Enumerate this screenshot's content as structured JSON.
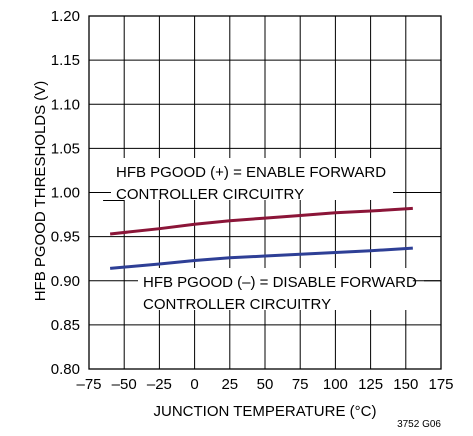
{
  "chart_data": {
    "type": "line",
    "xlabel": "JUNCTION TEMPERATURE (°C)",
    "ylabel": "HFB PGOOD THRESHOLDS (V)",
    "xlim": [
      -75,
      175
    ],
    "ylim": [
      0.8,
      1.2
    ],
    "x_ticks": [
      -75,
      -50,
      -25,
      0,
      25,
      50,
      75,
      100,
      125,
      150,
      175
    ],
    "x_tick_labels": [
      "–75",
      "–50",
      "–25",
      "0",
      "25",
      "50",
      "75",
      "100",
      "125",
      "150",
      "175"
    ],
    "y_ticks": [
      0.8,
      0.85,
      0.9,
      0.95,
      1.0,
      1.05,
      1.1,
      1.15,
      1.2
    ],
    "y_tick_labels": [
      "0.80",
      "0.85",
      "0.90",
      "0.95",
      "1.00",
      "1.05",
      "1.10",
      "1.15",
      "1.20"
    ],
    "grid": true,
    "series": [
      {
        "color": "#8b1538",
        "x": [
          -60,
          -25,
          0,
          25,
          50,
          75,
          100,
          125,
          155
        ],
        "y": [
          0.953,
          0.959,
          0.964,
          0.968,
          0.971,
          0.974,
          0.977,
          0.979,
          0.982
        ]
      },
      {
        "color": "#2e3f96",
        "x": [
          -60,
          -25,
          0,
          25,
          50,
          75,
          100,
          125,
          155
        ],
        "y": [
          0.914,
          0.919,
          0.923,
          0.926,
          0.928,
          0.93,
          0.932,
          0.934,
          0.937
        ]
      }
    ],
    "annotations": [
      {
        "lines": [
          "HFB PGOOD (+) = ENABLE FORWARD",
          "CONTROLLER CIRCUITRY"
        ],
        "leader_from": [
          -50,
          0.991
        ],
        "leader_to": [
          -65,
          0.991
        ]
      },
      {
        "lines": [
          "HFB PGOOD (–) = DISABLE FORWARD",
          "CONTROLLER CIRCUITRY"
        ],
        "leader_from": [
          155,
          0.9
        ],
        "leader_to": [
          175,
          0.9
        ]
      }
    ],
    "figure_id": "3752 G06"
  }
}
